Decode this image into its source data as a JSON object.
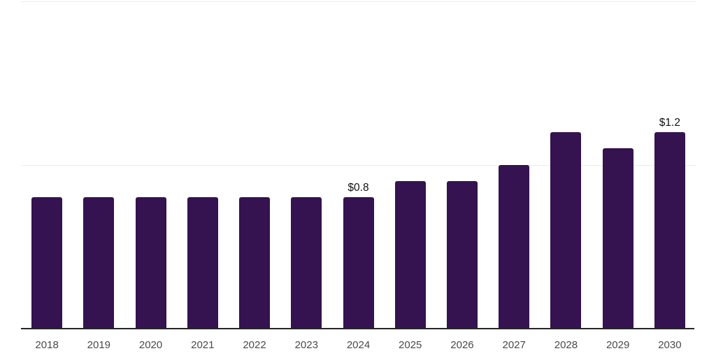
{
  "chart_data": {
    "type": "bar",
    "title": "",
    "xlabel": "",
    "ylabel": "",
    "categories": [
      "2018",
      "2019",
      "2020",
      "2021",
      "2022",
      "2023",
      "2024",
      "2025",
      "2026",
      "2027",
      "2028",
      "2029",
      "2030"
    ],
    "values": [
      0.8,
      0.8,
      0.8,
      0.8,
      0.8,
      0.8,
      0.8,
      0.9,
      0.9,
      1.0,
      1.2,
      1.1,
      1.2
    ],
    "point_labels": [
      "",
      "",
      "",
      "",
      "",
      "",
      "$0.8",
      "",
      "",
      "",
      "",
      "",
      "$1.2"
    ],
    "ylim": [
      0,
      2
    ],
    "grid_values": [
      1,
      2
    ],
    "grid_on": true,
    "legend_position": "none",
    "colors": {
      "bar": "#351250",
      "grid": "#ececec",
      "axis": "#262626",
      "tick_label": "#4a4a4a",
      "point_label": "#111111",
      "background": "#ffffff"
    }
  }
}
